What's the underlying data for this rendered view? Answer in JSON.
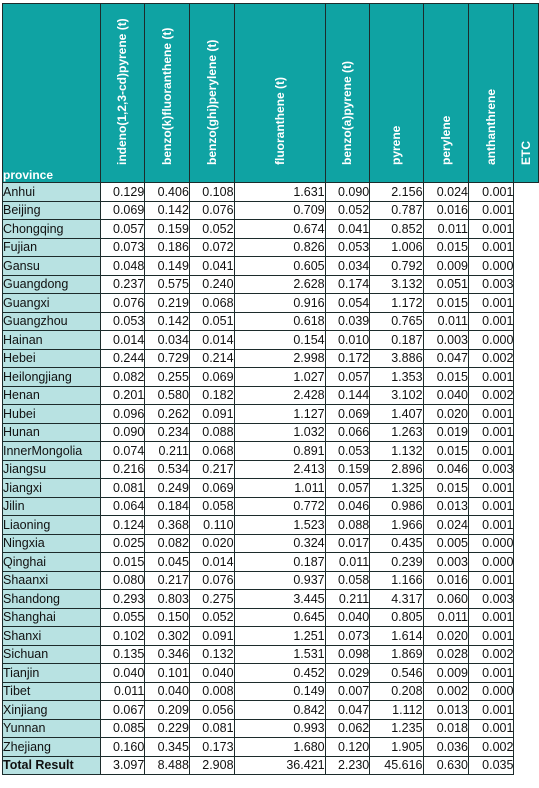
{
  "header": {
    "province": "province",
    "columns": [
      "indeno(1,2,3-cd)pyrene (t)",
      "benzo(k)fluoranthene (t)",
      "benzo(ghi)perylene (t)",
      "fluoranthene (t)",
      "benzo(a)pyrene (t)",
      "pyrene",
      "perylene",
      "anthanthrene",
      "ETC"
    ]
  },
  "rows": [
    {
      "province": "Anhui",
      "values": [
        "0.129",
        "0.406",
        "0.108",
        "1.631",
        "0.090",
        "2.156",
        "0.024",
        "0.001"
      ]
    },
    {
      "province": "Beijing",
      "values": [
        "0.069",
        "0.142",
        "0.076",
        "0.709",
        "0.052",
        "0.787",
        "0.016",
        "0.001"
      ]
    },
    {
      "province": "Chongqing",
      "values": [
        "0.057",
        "0.159",
        "0.052",
        "0.674",
        "0.041",
        "0.852",
        "0.011",
        "0.001"
      ]
    },
    {
      "province": "Fujian",
      "values": [
        "0.073",
        "0.186",
        "0.072",
        "0.826",
        "0.053",
        "1.006",
        "0.015",
        "0.001"
      ]
    },
    {
      "province": "Gansu",
      "values": [
        "0.048",
        "0.149",
        "0.041",
        "0.605",
        "0.034",
        "0.792",
        "0.009",
        "0.000"
      ]
    },
    {
      "province": "Guangdong",
      "values": [
        "0.237",
        "0.575",
        "0.240",
        "2.628",
        "0.174",
        "3.132",
        "0.051",
        "0.003"
      ]
    },
    {
      "province": "Guangxi",
      "values": [
        "0.076",
        "0.219",
        "0.068",
        "0.916",
        "0.054",
        "1.172",
        "0.015",
        "0.001"
      ]
    },
    {
      "province": "Guangzhou",
      "values": [
        "0.053",
        "0.142",
        "0.051",
        "0.618",
        "0.039",
        "0.765",
        "0.011",
        "0.001"
      ]
    },
    {
      "province": "Hainan",
      "values": [
        "0.014",
        "0.034",
        "0.014",
        "0.154",
        "0.010",
        "0.187",
        "0.003",
        "0.000"
      ]
    },
    {
      "province": "Hebei",
      "values": [
        "0.244",
        "0.729",
        "0.214",
        "2.998",
        "0.172",
        "3.886",
        "0.047",
        "0.002"
      ]
    },
    {
      "province": "Heilongjiang",
      "values": [
        "0.082",
        "0.255",
        "0.069",
        "1.027",
        "0.057",
        "1.353",
        "0.015",
        "0.001"
      ]
    },
    {
      "province": "Henan",
      "values": [
        "0.201",
        "0.580",
        "0.182",
        "2.428",
        "0.144",
        "3.102",
        "0.040",
        "0.002"
      ]
    },
    {
      "province": "Hubei",
      "values": [
        "0.096",
        "0.262",
        "0.091",
        "1.127",
        "0.069",
        "1.407",
        "0.020",
        "0.001"
      ]
    },
    {
      "province": "Hunan",
      "values": [
        "0.090",
        "0.234",
        "0.088",
        "1.032",
        "0.066",
        "1.263",
        "0.019",
        "0.001"
      ]
    },
    {
      "province": "InnerMongolia",
      "values": [
        "0.074",
        "0.211",
        "0.068",
        "0.891",
        "0.053",
        "1.132",
        "0.015",
        "0.001"
      ]
    },
    {
      "province": "Jiangsu",
      "values": [
        "0.216",
        "0.534",
        "0.217",
        "2.413",
        "0.159",
        "2.896",
        "0.046",
        "0.003"
      ]
    },
    {
      "province": "Jiangxi",
      "values": [
        "0.081",
        "0.249",
        "0.069",
        "1.011",
        "0.057",
        "1.325",
        "0.015",
        "0.001"
      ]
    },
    {
      "province": "Jilin",
      "values": [
        "0.064",
        "0.184",
        "0.058",
        "0.772",
        "0.046",
        "0.986",
        "0.013",
        "0.001"
      ]
    },
    {
      "province": "Liaoning",
      "values": [
        "0.124",
        "0.368",
        "0.110",
        "1.523",
        "0.088",
        "1.966",
        "0.024",
        "0.001"
      ]
    },
    {
      "province": "Ningxia",
      "values": [
        "0.025",
        "0.082",
        "0.020",
        "0.324",
        "0.017",
        "0.435",
        "0.005",
        "0.000"
      ]
    },
    {
      "province": "Qinghai",
      "values": [
        "0.015",
        "0.045",
        "0.014",
        "0.187",
        "0.011",
        "0.239",
        "0.003",
        "0.000"
      ]
    },
    {
      "province": "Shaanxi",
      "values": [
        "0.080",
        "0.217",
        "0.076",
        "0.937",
        "0.058",
        "1.166",
        "0.016",
        "0.001"
      ]
    },
    {
      "province": "Shandong",
      "values": [
        "0.293",
        "0.803",
        "0.275",
        "3.445",
        "0.211",
        "4.317",
        "0.060",
        "0.003"
      ]
    },
    {
      "province": "Shanghai",
      "values": [
        "0.055",
        "0.150",
        "0.052",
        "0.645",
        "0.040",
        "0.805",
        "0.011",
        "0.001"
      ]
    },
    {
      "province": "Shanxi",
      "values": [
        "0.102",
        "0.302",
        "0.091",
        "1.251",
        "0.073",
        "1.614",
        "0.020",
        "0.001"
      ]
    },
    {
      "province": "Sichuan",
      "values": [
        "0.135",
        "0.346",
        "0.132",
        "1.531",
        "0.098",
        "1.869",
        "0.028",
        "0.002"
      ]
    },
    {
      "province": "Tianjin",
      "values": [
        "0.040",
        "0.101",
        "0.040",
        "0.452",
        "0.029",
        "0.546",
        "0.009",
        "0.001"
      ]
    },
    {
      "province": "Tibet",
      "values": [
        "0.011",
        "0.040",
        "0.008",
        "0.149",
        "0.007",
        "0.208",
        "0.002",
        "0.000"
      ]
    },
    {
      "province": "Xinjiang",
      "values": [
        "0.067",
        "0.209",
        "0.056",
        "0.842",
        "0.047",
        "1.112",
        "0.013",
        "0.001"
      ]
    },
    {
      "province": "Yunnan",
      "values": [
        "0.085",
        "0.229",
        "0.081",
        "0.993",
        "0.062",
        "1.235",
        "0.018",
        "0.001"
      ]
    },
    {
      "province": "Zhejiang",
      "values": [
        "0.160",
        "0.345",
        "0.173",
        "1.680",
        "0.120",
        "1.905",
        "0.036",
        "0.002"
      ]
    }
  ],
  "total": {
    "province": "Total Result",
    "values": [
      "3.097",
      "8.488",
      "2.908",
      "36.421",
      "2.230",
      "45.616",
      "0.630",
      "0.035"
    ]
  },
  "colors": {
    "header_bg": "#0fa3a3",
    "province_bg": "#b8e2e2"
  }
}
